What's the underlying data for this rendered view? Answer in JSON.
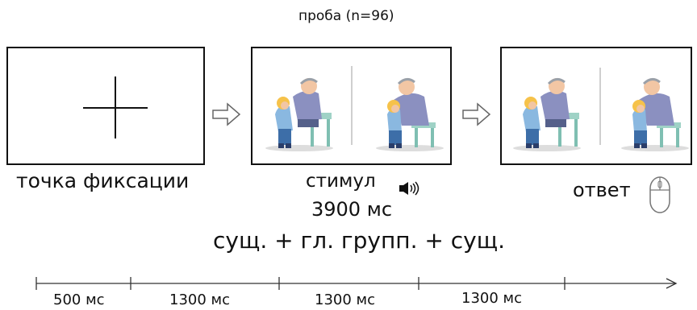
{
  "trial_label": "проба (n=96)",
  "screens": {
    "fixation": {
      "label": "точка фиксации"
    },
    "stimulus": {
      "label": "стимул",
      "duration": "3900 мс",
      "structure": "сущ. + гл. групп. + сущ."
    },
    "response": {
      "label": "ответ"
    }
  },
  "timeline": {
    "segments": [
      "500 мс",
      "1300 мс",
      "1300 мс",
      "1300 мс"
    ]
  },
  "icons": {
    "arrow_1": "hollow-right-arrow-icon",
    "arrow_2": "hollow-right-arrow-icon",
    "speaker": "speaker-icon",
    "mouse": "computer-mouse-icon"
  }
}
